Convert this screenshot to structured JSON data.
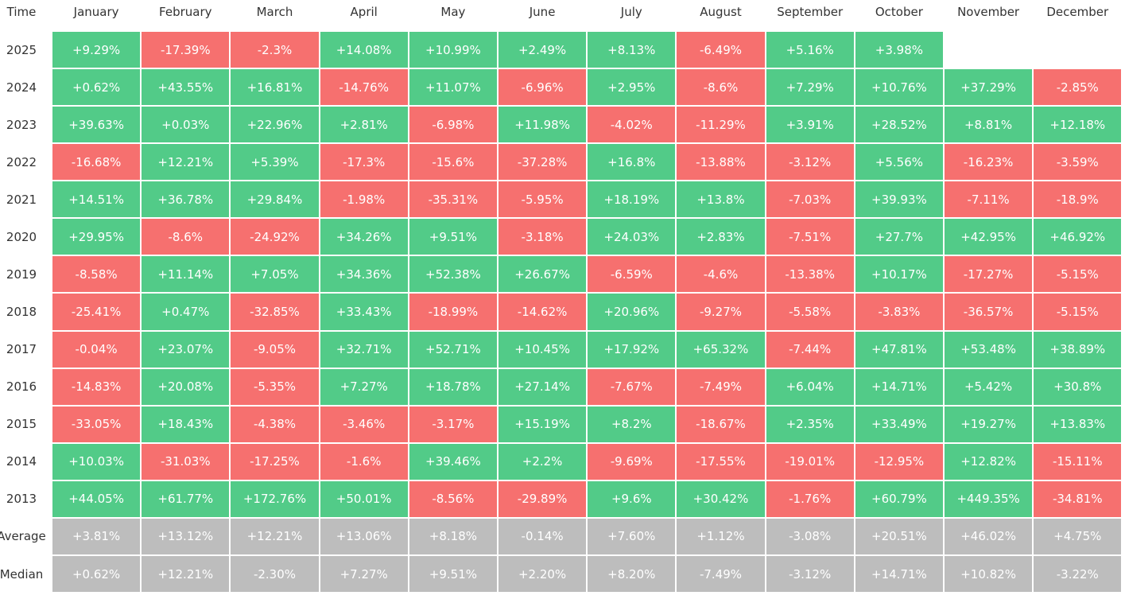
{
  "table": {
    "header": [
      "Time",
      "January",
      "February",
      "March",
      "April",
      "May",
      "June",
      "July",
      "August",
      "September",
      "October",
      "November",
      "December"
    ],
    "rows": [
      {
        "label": "2025",
        "cells": [
          "+9.29%",
          "-17.39%",
          "-2.3%",
          "+14.08%",
          "+10.99%",
          "+2.49%",
          "+8.13%",
          "-6.49%",
          "+5.16%",
          "+3.98%"
        ]
      },
      {
        "label": "2024",
        "cells": [
          "+0.62%",
          "+43.55%",
          "+16.81%",
          "-14.76%",
          "+11.07%",
          "-6.96%",
          "+2.95%",
          "-8.6%",
          "+7.29%",
          "+10.76%",
          "+37.29%",
          "-2.85%"
        ]
      },
      {
        "label": "2023",
        "cells": [
          "+39.63%",
          "+0.03%",
          "+22.96%",
          "+2.81%",
          "-6.98%",
          "+11.98%",
          "-4.02%",
          "-11.29%",
          "+3.91%",
          "+28.52%",
          "+8.81%",
          "+12.18%"
        ]
      },
      {
        "label": "2022",
        "cells": [
          "-16.68%",
          "+12.21%",
          "+5.39%",
          "-17.3%",
          "-15.6%",
          "-37.28%",
          "+16.8%",
          "-13.88%",
          "-3.12%",
          "+5.56%",
          "-16.23%",
          "-3.59%"
        ]
      },
      {
        "label": "2021",
        "cells": [
          "+14.51%",
          "+36.78%",
          "+29.84%",
          "-1.98%",
          "-35.31%",
          "-5.95%",
          "+18.19%",
          "+13.8%",
          "-7.03%",
          "+39.93%",
          "-7.11%",
          "-18.9%"
        ]
      },
      {
        "label": "2020",
        "cells": [
          "+29.95%",
          "-8.6%",
          "-24.92%",
          "+34.26%",
          "+9.51%",
          "-3.18%",
          "+24.03%",
          "+2.83%",
          "-7.51%",
          "+27.7%",
          "+42.95%",
          "+46.92%"
        ]
      },
      {
        "label": "2019",
        "cells": [
          "-8.58%",
          "+11.14%",
          "+7.05%",
          "+34.36%",
          "+52.38%",
          "+26.67%",
          "-6.59%",
          "-4.6%",
          "-13.38%",
          "+10.17%",
          "-17.27%",
          "-5.15%"
        ]
      },
      {
        "label": "2018",
        "cells": [
          "-25.41%",
          "+0.47%",
          "-32.85%",
          "+33.43%",
          "-18.99%",
          "-14.62%",
          "+20.96%",
          "-9.27%",
          "-5.58%",
          "-3.83%",
          "-36.57%",
          "-5.15%"
        ]
      },
      {
        "label": "2017",
        "cells": [
          "-0.04%",
          "+23.07%",
          "-9.05%",
          "+32.71%",
          "+52.71%",
          "+10.45%",
          "+17.92%",
          "+65.32%",
          "-7.44%",
          "+47.81%",
          "+53.48%",
          "+38.89%"
        ]
      },
      {
        "label": "2016",
        "cells": [
          "-14.83%",
          "+20.08%",
          "-5.35%",
          "+7.27%",
          "+18.78%",
          "+27.14%",
          "-7.67%",
          "-7.49%",
          "+6.04%",
          "+14.71%",
          "+5.42%",
          "+30.8%"
        ]
      },
      {
        "label": "2015",
        "cells": [
          "-33.05%",
          "+18.43%",
          "-4.38%",
          "-3.46%",
          "-3.17%",
          "+15.19%",
          "+8.2%",
          "-18.67%",
          "+2.35%",
          "+33.49%",
          "+19.27%",
          "+13.83%"
        ]
      },
      {
        "label": "2014",
        "cells": [
          "+10.03%",
          "-31.03%",
          "-17.25%",
          "-1.6%",
          "+39.46%",
          "+2.2%",
          "-9.69%",
          "-17.55%",
          "-19.01%",
          "-12.95%",
          "+12.82%",
          "-15.11%"
        ]
      },
      {
        "label": "2013",
        "cells": [
          "+44.05%",
          "+61.77%",
          "+172.76%",
          "+50.01%",
          "-8.56%",
          "-29.89%",
          "+9.6%",
          "+30.42%",
          "-1.76%",
          "+60.79%",
          "+449.35%",
          "-34.81%"
        ]
      }
    ],
    "summary_rows": [
      {
        "label": "Average",
        "cells": [
          "+3.81%",
          "+13.12%",
          "+12.21%",
          "+13.06%",
          "+8.18%",
          "-0.14%",
          "+7.60%",
          "+1.12%",
          "-3.08%",
          "+20.51%",
          "+46.02%",
          "+4.75%"
        ]
      },
      {
        "label": "Median",
        "cells": [
          "+0.62%",
          "+12.21%",
          "-2.30%",
          "+7.27%",
          "+9.51%",
          "+2.20%",
          "+8.20%",
          "-7.49%",
          "-3.12%",
          "+14.71%",
          "+10.82%",
          "-3.22%"
        ]
      }
    ],
    "colors": {
      "up": "#52cb88",
      "down": "#f6706f",
      "summary": "#bdbdbd"
    }
  }
}
